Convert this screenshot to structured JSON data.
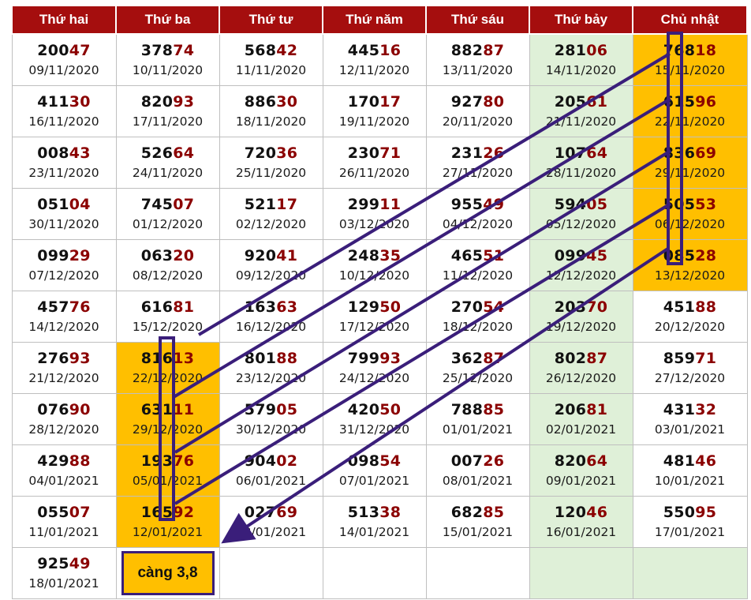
{
  "headers": [
    "Thứ hai",
    "Thứ ba",
    "Thứ tư",
    "Thứ năm",
    "Thứ sáu",
    "Thứ bảy",
    "Chủ nhật"
  ],
  "rows": [
    [
      {
        "lead": "200",
        "tail": "47",
        "date": "09/11/2020"
      },
      {
        "lead": "378",
        "tail": "74",
        "date": "10/11/2020"
      },
      {
        "lead": "568",
        "tail": "42",
        "date": "11/11/2020"
      },
      {
        "lead": "445",
        "tail": "16",
        "date": "12/11/2020"
      },
      {
        "lead": "882",
        "tail": "87",
        "date": "13/11/2020"
      },
      {
        "lead": "281",
        "tail": "06",
        "date": "14/11/2020"
      },
      {
        "lead": "768",
        "tail": "18",
        "date": "15/11/2020",
        "highlight": true
      }
    ],
    [
      {
        "lead": "411",
        "tail": "30",
        "date": "16/11/2020"
      },
      {
        "lead": "820",
        "tail": "93",
        "date": "17/11/2020"
      },
      {
        "lead": "886",
        "tail": "30",
        "date": "18/11/2020"
      },
      {
        "lead": "170",
        "tail": "17",
        "date": "19/11/2020"
      },
      {
        "lead": "927",
        "tail": "80",
        "date": "20/11/2020"
      },
      {
        "lead": "205",
        "tail": "61",
        "date": "21/11/2020"
      },
      {
        "lead": "615",
        "tail": "96",
        "date": "22/11/2020",
        "highlight": true
      }
    ],
    [
      {
        "lead": "008",
        "tail": "43",
        "date": "23/11/2020"
      },
      {
        "lead": "526",
        "tail": "64",
        "date": "24/11/2020"
      },
      {
        "lead": "720",
        "tail": "36",
        "date": "25/11/2020"
      },
      {
        "lead": "230",
        "tail": "71",
        "date": "26/11/2020"
      },
      {
        "lead": "231",
        "tail": "26",
        "date": "27/11/2020"
      },
      {
        "lead": "107",
        "tail": "64",
        "date": "28/11/2020"
      },
      {
        "lead": "836",
        "tail": "69",
        "date": "29/11/2020",
        "highlight": true
      }
    ],
    [
      {
        "lead": "051",
        "tail": "04",
        "date": "30/11/2020"
      },
      {
        "lead": "745",
        "tail": "07",
        "date": "01/12/2020"
      },
      {
        "lead": "521",
        "tail": "17",
        "date": "02/12/2020"
      },
      {
        "lead": "299",
        "tail": "11",
        "date": "03/12/2020"
      },
      {
        "lead": "955",
        "tail": "49",
        "date": "04/12/2020"
      },
      {
        "lead": "594",
        "tail": "05",
        "date": "05/12/2020"
      },
      {
        "lead": "505",
        "tail": "53",
        "date": "06/12/2020",
        "highlight": true
      }
    ],
    [
      {
        "lead": "099",
        "tail": "29",
        "date": "07/12/2020"
      },
      {
        "lead": "063",
        "tail": "20",
        "date": "08/12/2020"
      },
      {
        "lead": "920",
        "tail": "41",
        "date": "09/12/2020"
      },
      {
        "lead": "248",
        "tail": "35",
        "date": "10/12/2020"
      },
      {
        "lead": "465",
        "tail": "51",
        "date": "11/12/2020"
      },
      {
        "lead": "099",
        "tail": "45",
        "date": "12/12/2020"
      },
      {
        "lead": "085",
        "tail": "28",
        "date": "13/12/2020",
        "highlight": true
      }
    ],
    [
      {
        "lead": "457",
        "tail": "76",
        "date": "14/12/2020"
      },
      {
        "lead": "616",
        "tail": "81",
        "date": "15/12/2020"
      },
      {
        "lead": "163",
        "tail": "63",
        "date": "16/12/2020"
      },
      {
        "lead": "129",
        "tail": "50",
        "date": "17/12/2020"
      },
      {
        "lead": "270",
        "tail": "54",
        "date": "18/12/2020"
      },
      {
        "lead": "203",
        "tail": "70",
        "date": "19/12/2020"
      },
      {
        "lead": "451",
        "tail": "88",
        "date": "20/12/2020"
      }
    ],
    [
      {
        "lead": "276",
        "tail": "93",
        "date": "21/12/2020"
      },
      {
        "lead": "816",
        "tail": "13",
        "date": "22/12/2020",
        "highlight": true
      },
      {
        "lead": "801",
        "tail": "88",
        "date": "23/12/2020"
      },
      {
        "lead": "799",
        "tail": "93",
        "date": "24/12/2020"
      },
      {
        "lead": "362",
        "tail": "87",
        "date": "25/12/2020"
      },
      {
        "lead": "802",
        "tail": "87",
        "date": "26/12/2020"
      },
      {
        "lead": "859",
        "tail": "71",
        "date": "27/12/2020"
      }
    ],
    [
      {
        "lead": "076",
        "tail": "90",
        "date": "28/12/2020"
      },
      {
        "lead": "631",
        "tail": "11",
        "date": "29/12/2020",
        "highlight": true
      },
      {
        "lead": "579",
        "tail": "05",
        "date": "30/12/2020"
      },
      {
        "lead": "420",
        "tail": "50",
        "date": "31/12/2020"
      },
      {
        "lead": "788",
        "tail": "85",
        "date": "01/01/2021"
      },
      {
        "lead": "206",
        "tail": "81",
        "date": "02/01/2021"
      },
      {
        "lead": "431",
        "tail": "32",
        "date": "03/01/2021"
      }
    ],
    [
      {
        "lead": "429",
        "tail": "88",
        "date": "04/01/2021"
      },
      {
        "lead": "193",
        "tail": "76",
        "date": "05/01/2021",
        "highlight": true
      },
      {
        "lead": "904",
        "tail": "02",
        "date": "06/01/2021"
      },
      {
        "lead": "098",
        "tail": "54",
        "date": "07/01/2021"
      },
      {
        "lead": "007",
        "tail": "26",
        "date": "08/01/2021"
      },
      {
        "lead": "820",
        "tail": "64",
        "date": "09/01/2021"
      },
      {
        "lead": "481",
        "tail": "46",
        "date": "10/01/2021"
      }
    ],
    [
      {
        "lead": "055",
        "tail": "07",
        "date": "11/01/2021"
      },
      {
        "lead": "165",
        "tail": "92",
        "date": "12/01/2021",
        "highlight": true
      },
      {
        "lead": "027",
        "tail": "69",
        "date": "13/01/2021"
      },
      {
        "lead": "513",
        "tail": "38",
        "date": "14/01/2021"
      },
      {
        "lead": "682",
        "tail": "85",
        "date": "15/01/2021"
      },
      {
        "lead": "120",
        "tail": "46",
        "date": "16/01/2021"
      },
      {
        "lead": "550",
        "tail": "95",
        "date": "17/01/2021"
      }
    ]
  ],
  "last_row": {
    "lead": "925",
    "tail": "49",
    "date": "18/01/2021"
  },
  "note": "càng 3,8",
  "colors": {
    "header_bg": "#a50e0e",
    "header_text": "#ffffff",
    "number_tail": "#8b0000",
    "highlight_cell": "#ffbf00",
    "saturday_column": "#dff0d8",
    "annotation_stroke": "#3a1e7a"
  }
}
